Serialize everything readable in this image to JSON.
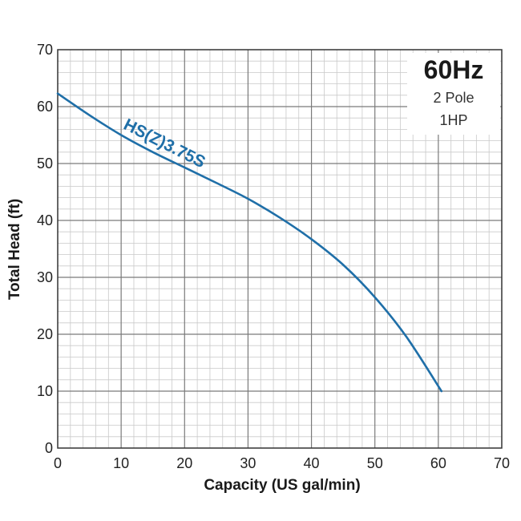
{
  "chart_data": {
    "type": "line",
    "title": "",
    "xlabel": "Capacity (US gal/min)",
    "ylabel": "Total Head (ft)",
    "xlim": [
      0,
      70
    ],
    "ylim": [
      0,
      70
    ],
    "x_ticks": [
      0,
      10,
      20,
      30,
      40,
      50,
      60,
      70
    ],
    "y_ticks": [
      0,
      10,
      20,
      30,
      40,
      50,
      60,
      70
    ],
    "major_step": 10,
    "minor_step": 2,
    "grid": true,
    "series": [
      {
        "name": "HS(Z)3.75S",
        "color": "#1f6fa8",
        "x": [
          0,
          5,
          10,
          15,
          20,
          25,
          30,
          35,
          40,
          45,
          50,
          55,
          60.5
        ],
        "y": [
          62.3,
          58.5,
          55.0,
          52.0,
          49.3,
          46.6,
          43.8,
          40.5,
          36.7,
          32.2,
          26.5,
          19.5,
          10.0
        ]
      }
    ],
    "info_box": {
      "frequency": "60Hz",
      "poles": "2 Pole",
      "power": "1HP"
    }
  }
}
